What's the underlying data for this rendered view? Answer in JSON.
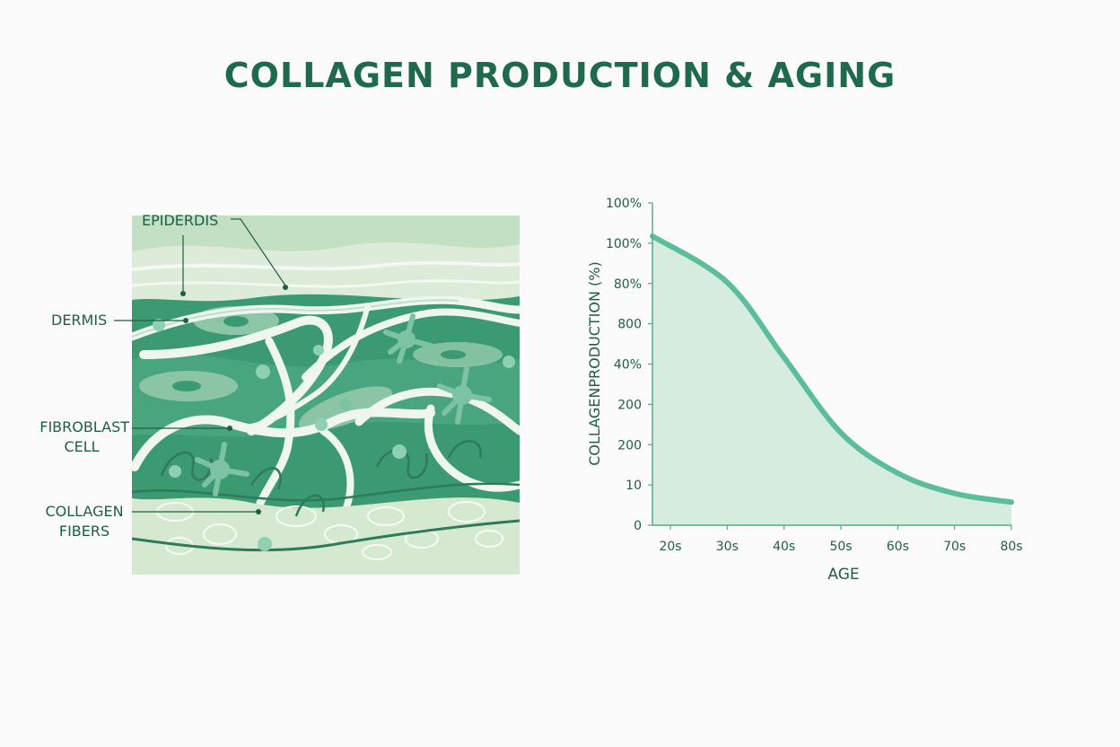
{
  "title": "COLLAGEN PRODUCTION & AGING",
  "diagram": {
    "labels": {
      "epidermis": "EPIDERDIS",
      "dermis": "DERMIS",
      "fibroblast_line1": "FIBROBLAST",
      "fibroblast_line2": "CELL",
      "collagen_line1": "COLLAGEN",
      "collagen_line2": "FIBERS"
    }
  },
  "chart_data": {
    "type": "area",
    "xlabel": "AGE",
    "ylabel": "COLLAGENPRODUCTION (%)",
    "categories": [
      "20s",
      "30s",
      "40s",
      "50s",
      "60s",
      "70s",
      "80s"
    ],
    "y_tick_labels": [
      "0",
      "10",
      "200",
      "200",
      "40%",
      "800",
      "80%",
      "100%",
      "100%"
    ],
    "ylim": [
      0,
      100
    ],
    "series": [
      {
        "values": [
          100,
          84,
          58,
          32,
          18,
          11,
          8
        ]
      }
    ],
    "colors": {
      "line": "#5bbd9c",
      "fill": "#d5ecdf",
      "axis": "#5aa88a",
      "text": "#1f5e44"
    }
  }
}
